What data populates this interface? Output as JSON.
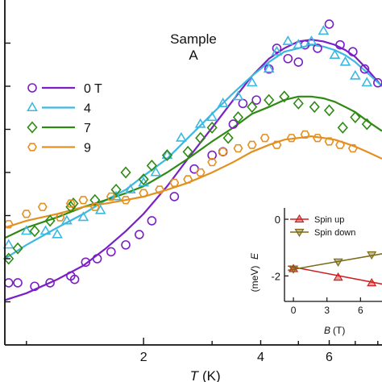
{
  "chart_data": [
    {
      "type": "scatter",
      "title": "",
      "xlabel": "T",
      "xunit": "(K)",
      "ylabel": "",
      "xscale": "log",
      "xlim": [
        0.88,
        8.2
      ],
      "ylim": [
        0,
        1
      ],
      "x_ticks": [
        "2",
        "4",
        "6"
      ],
      "annotation": [
        "Sample",
        "A"
      ],
      "legend": {
        "placement": "upper-left"
      },
      "series": [
        {
          "name": "0 T",
          "color": "#7a1fc7",
          "marker": "circle",
          "x": [
            0.9,
            0.95,
            1.05,
            1.15,
            1.3,
            1.33,
            1.42,
            1.52,
            1.65,
            1.8,
            1.95,
            2.1,
            2.4,
            2.7,
            3.0,
            3.2,
            3.4,
            3.6,
            3.9,
            4.2,
            4.4,
            4.7,
            5.0,
            5.2,
            5.6,
            6.0,
            6.4,
            6.9,
            7.4,
            8.0
          ],
          "y": [
            0.18,
            0.18,
            0.17,
            0.18,
            0.2,
            0.19,
            0.24,
            0.25,
            0.27,
            0.29,
            0.32,
            0.36,
            0.43,
            0.51,
            0.55,
            0.56,
            0.64,
            0.7,
            0.71,
            0.8,
            0.86,
            0.83,
            0.82,
            0.87,
            0.86,
            0.93,
            0.87,
            0.85,
            0.8,
            0.76
          ]
        },
        {
          "name": "4",
          "color": "#3db8e0",
          "marker": "triangle",
          "x": [
            0.9,
            1.0,
            1.12,
            1.2,
            1.27,
            1.4,
            1.55,
            1.7,
            1.85,
            2.0,
            2.15,
            2.3,
            2.5,
            2.8,
            3.0,
            3.2,
            3.5,
            3.8,
            4.2,
            4.4,
            4.7,
            5.0,
            5.4,
            5.8,
            6.2,
            6.6,
            7.0,
            7.5
          ],
          "y": [
            0.29,
            0.33,
            0.33,
            0.32,
            0.36,
            0.37,
            0.39,
            0.43,
            0.45,
            0.47,
            0.5,
            0.55,
            0.6,
            0.64,
            0.66,
            0.7,
            0.72,
            0.76,
            0.8,
            0.85,
            0.88,
            0.87,
            0.88,
            0.91,
            0.84,
            0.82,
            0.78,
            0.76
          ]
        },
        {
          "name": "7",
          "color": "#2e8a14",
          "marker": "diamond",
          "x": [
            0.9,
            0.95,
            1.05,
            1.15,
            1.3,
            1.32,
            1.5,
            1.7,
            1.8,
            2.0,
            2.1,
            2.3,
            2.6,
            2.8,
            3.0,
            3.3,
            3.5,
            3.8,
            4.2,
            4.6,
            5.0,
            5.5,
            6.0,
            6.5,
            7.0,
            7.5
          ],
          "y": [
            0.25,
            0.28,
            0.33,
            0.36,
            0.4,
            0.41,
            0.42,
            0.45,
            0.5,
            0.48,
            0.52,
            0.55,
            0.56,
            0.6,
            0.63,
            0.6,
            0.66,
            0.69,
            0.71,
            0.72,
            0.7,
            0.69,
            0.68,
            0.63,
            0.66,
            0.64
          ]
        },
        {
          "name": "9",
          "color": "#e39020",
          "marker": "hexagon",
          "x": [
            0.9,
            1.0,
            1.1,
            1.22,
            1.3,
            1.4,
            1.5,
            1.65,
            1.8,
            2.0,
            2.2,
            2.4,
            2.6,
            2.8,
            3.0,
            3.2,
            3.5,
            3.8,
            4.1,
            4.4,
            4.8,
            5.2,
            5.6,
            6.0,
            6.4,
            6.9
          ],
          "y": [
            0.35,
            0.38,
            0.4,
            0.37,
            0.41,
            0.42,
            0.4,
            0.43,
            0.42,
            0.44,
            0.45,
            0.47,
            0.48,
            0.5,
            0.53,
            0.56,
            0.57,
            0.58,
            0.6,
            0.58,
            0.6,
            0.61,
            0.6,
            0.59,
            0.58,
            0.57
          ]
        }
      ],
      "fits": [
        {
          "name": "0 T",
          "color": "#7a1fc7",
          "x": [
            0.88,
            1.0,
            1.2,
            1.4,
            1.6,
            1.8,
            2.0,
            2.3,
            2.6,
            3.0,
            3.4,
            3.8,
            4.2,
            4.6,
            5.0,
            5.4,
            5.8,
            6.2,
            6.6,
            7.0,
            7.5,
            8.2
          ],
          "y": [
            0.13,
            0.15,
            0.19,
            0.23,
            0.28,
            0.33,
            0.38,
            0.46,
            0.54,
            0.63,
            0.71,
            0.78,
            0.83,
            0.86,
            0.88,
            0.885,
            0.88,
            0.87,
            0.855,
            0.835,
            0.8,
            0.75
          ]
        },
        {
          "name": "4",
          "color": "#3db8e0",
          "x": [
            0.88,
            1.0,
            1.2,
            1.4,
            1.6,
            1.8,
            2.0,
            2.3,
            2.6,
            3.0,
            3.4,
            3.8,
            4.2,
            4.6,
            5.0,
            5.4,
            5.8,
            6.2,
            6.6,
            7.0,
            7.5,
            8.2
          ],
          "y": [
            0.25,
            0.29,
            0.34,
            0.38,
            0.42,
            0.45,
            0.49,
            0.54,
            0.6,
            0.67,
            0.73,
            0.78,
            0.82,
            0.85,
            0.86,
            0.87,
            0.865,
            0.855,
            0.84,
            0.82,
            0.79,
            0.75
          ]
        },
        {
          "name": "7",
          "color": "#2e8a14",
          "x": [
            0.88,
            1.0,
            1.2,
            1.4,
            1.6,
            1.8,
            2.0,
            2.3,
            2.6,
            3.0,
            3.4,
            3.8,
            4.2,
            4.6,
            5.0,
            5.4,
            5.8,
            6.2,
            6.6,
            7.0,
            7.5,
            8.2
          ],
          "y": [
            0.31,
            0.34,
            0.37,
            0.4,
            0.42,
            0.44,
            0.46,
            0.5,
            0.54,
            0.59,
            0.63,
            0.67,
            0.69,
            0.71,
            0.72,
            0.72,
            0.715,
            0.705,
            0.69,
            0.675,
            0.65,
            0.62
          ]
        },
        {
          "name": "9",
          "color": "#e39020",
          "x": [
            0.88,
            1.0,
            1.2,
            1.4,
            1.6,
            1.8,
            2.0,
            2.3,
            2.6,
            3.0,
            3.4,
            3.8,
            4.2,
            4.6,
            5.0,
            5.4,
            5.8,
            6.2,
            6.6,
            7.0,
            7.5,
            8.2
          ],
          "y": [
            0.34,
            0.36,
            0.38,
            0.4,
            0.41,
            0.42,
            0.43,
            0.45,
            0.47,
            0.5,
            0.53,
            0.56,
            0.58,
            0.595,
            0.6,
            0.605,
            0.6,
            0.595,
            0.585,
            0.575,
            0.56,
            0.54
          ]
        }
      ]
    },
    {
      "type": "line",
      "title": "",
      "xlabel": "B",
      "xunit": "(T)",
      "ylabel": "E",
      "yunit": "(meV)",
      "xlim": [
        -0.8,
        8.5
      ],
      "ylim": [
        -2.9,
        0.4
      ],
      "x_ticks": [
        "0",
        "3",
        "6"
      ],
      "y_ticks": [
        "0",
        "-2"
      ],
      "legend": {
        "placement": "top"
      },
      "series": [
        {
          "name": "Spin up",
          "color": "#cc2020",
          "marker": "triangle-up",
          "x": [
            0,
            4,
            7
          ],
          "y": [
            -1.75,
            -2.05,
            -2.25
          ],
          "line_x": [
            -0.5,
            8.5
          ],
          "line_y": [
            -1.65,
            -2.33
          ]
        },
        {
          "name": "Spin down",
          "color": "#7a6a14",
          "marker": "triangle-down",
          "x": [
            0,
            4,
            7
          ],
          "y": [
            -1.75,
            -1.5,
            -1.25
          ],
          "line_x": [
            -0.5,
            8.5
          ],
          "line_y": [
            -1.8,
            -1.18
          ]
        }
      ]
    }
  ]
}
